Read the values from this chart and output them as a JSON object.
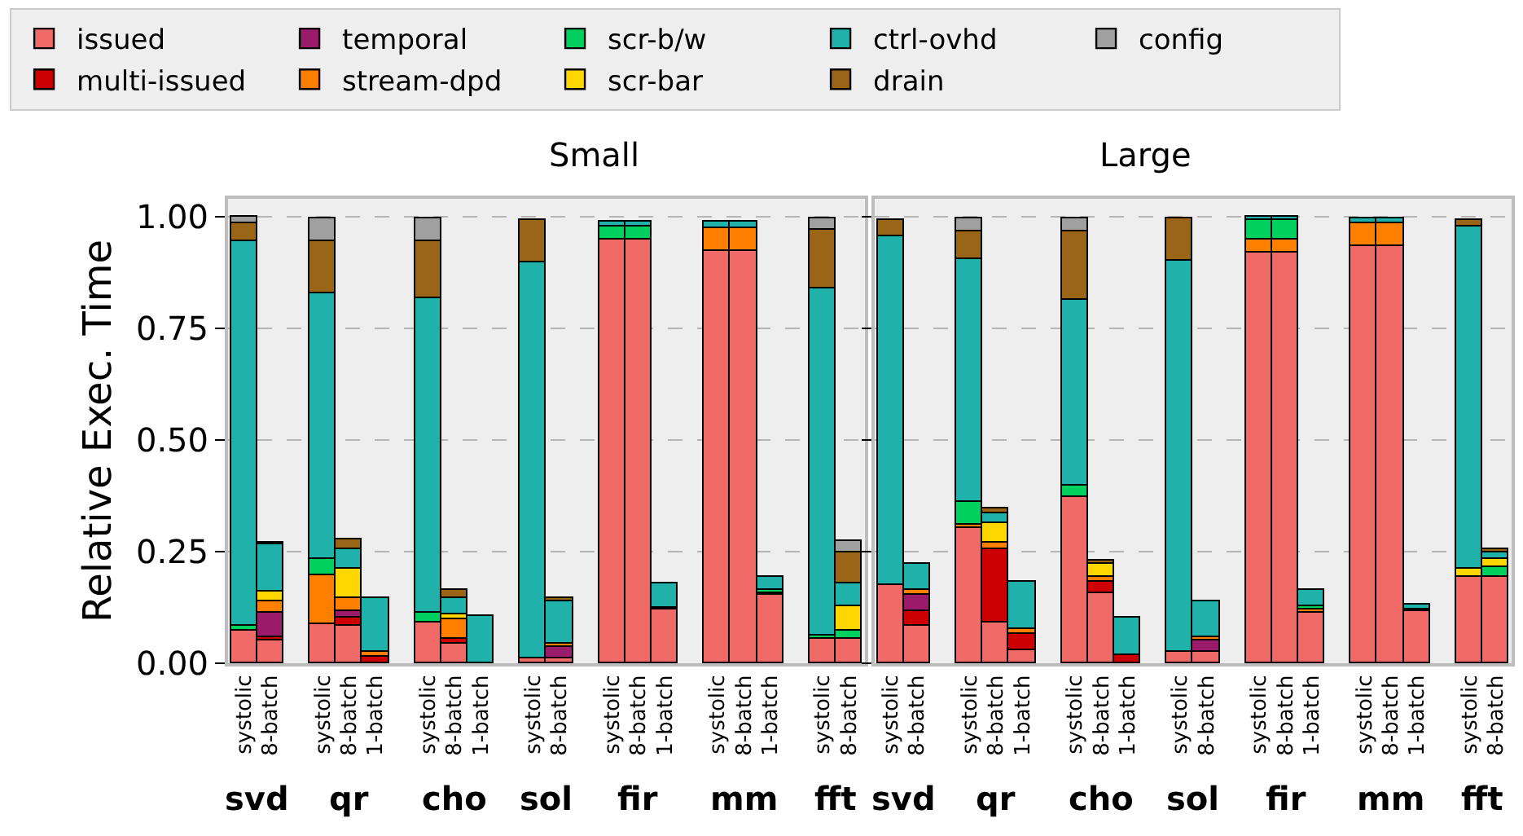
{
  "chart_data": [
    {
      "type": "bar",
      "title": "Small",
      "ylabel": "Relative Exec. Time",
      "stacked": true,
      "grid": "y",
      "legend": "top",
      "categories": [
        "systolic",
        "8-batch",
        null,
        "systolic",
        "8-batch",
        "1-batch",
        null,
        "systolic",
        "8-batch",
        "1-batch",
        null,
        "systolic",
        "8-batch",
        null,
        "systolic",
        "8-batch",
        "1-batch",
        null,
        "systolic",
        "8-batch",
        "1-batch",
        null,
        "systolic",
        "8-batch"
      ],
      "annotations": [
        "svd",
        "qr",
        "cho",
        "sol",
        "fir",
        "mm",
        "fft"
      ],
      "ylim": [
        0,
        1.04
      ],
      "yticks": [
        {
          "value": 0,
          "label": "0.00"
        },
        {
          "value": 0.25,
          "label": "0.25"
        },
        {
          "value": 0.5,
          "label": "0.50"
        },
        {
          "value": 0.75,
          "label": "0.75"
        },
        {
          "value": 1,
          "label": "1.00"
        }
      ],
      "series": [
        {
          "name": "issued",
          "color": "#f06b67",
          "values": [
            0.072,
            0.05,
            null,
            0.089,
            0.084,
            null,
            null,
            0.09,
            0.045,
            null,
            null,
            0.011,
            0.011,
            null,
            0.948,
            0.948,
            0.119,
            null,
            0.923,
            0.923,
            0.153,
            null,
            0.054,
            0.054
          ]
        },
        {
          "name": "multi-issued",
          "color": "#cc0000",
          "values": [
            null,
            0.007,
            null,
            null,
            0.019,
            0.016,
            null,
            null,
            0.011,
            null,
            null,
            null,
            null,
            null,
            null,
            null,
            0.004,
            null,
            null,
            null,
            null,
            null,
            null,
            null
          ]
        },
        {
          "name": "temporal",
          "color": "#9b1b6b",
          "values": [
            null,
            0.056,
            null,
            null,
            0.013,
            null,
            null,
            null,
            null,
            null,
            null,
            null,
            0.024,
            null,
            null,
            null,
            null,
            null,
            null,
            null,
            null,
            null,
            null,
            null
          ]
        },
        {
          "name": "stream-dpd",
          "color": "#ff7f00",
          "values": [
            null,
            0.025,
            null,
            0.109,
            0.031,
            0.01,
            null,
            null,
            0.044,
            null,
            null,
            null,
            0.01,
            null,
            null,
            null,
            null,
            null,
            0.051,
            0.051,
            0.005,
            null,
            null,
            null
          ]
        },
        {
          "name": "scr-b/w",
          "color": "#00d15e",
          "values": [
            0.011,
            null,
            null,
            0.037,
            null,
            null,
            null,
            0.024,
            null,
            null,
            null,
            null,
            null,
            null,
            0.029,
            0.029,
            null,
            null,
            null,
            null,
            0.007,
            null,
            0.007,
            0.018
          ]
        },
        {
          "name": "scr-bar",
          "color": "#ffd700",
          "values": [
            null,
            0.021,
            null,
            null,
            0.065,
            null,
            null,
            null,
            0.011,
            null,
            null,
            null,
            null,
            null,
            null,
            null,
            null,
            null,
            null,
            null,
            null,
            null,
            null,
            0.055
          ]
        },
        {
          "name": "ctrl-ovhd",
          "color": "#20b2aa",
          "values": [
            0.861,
            0.107,
            null,
            0.593,
            0.045,
            0.12,
            null,
            0.705,
            0.035,
            0.107,
            null,
            0.885,
            0.093,
            null,
            0.013,
            0.013,
            0.055,
            null,
            0.015,
            0.015,
            0.028,
            null,
            0.78,
            0.053
          ]
        },
        {
          "name": "drain",
          "color": "#9a6516",
          "values": [
            0.043,
            0.005,
            null,
            0.116,
            0.021,
            null,
            null,
            0.127,
            0.018,
            null,
            null,
            0.095,
            0.009,
            null,
            null,
            null,
            null,
            null,
            null,
            null,
            null,
            null,
            0.129,
            0.067
          ]
        },
        {
          "name": "config",
          "color": "#a0a0a0",
          "values": [
            0.013,
            null,
            null,
            0.051,
            null,
            null,
            null,
            0.049,
            null,
            null,
            null,
            null,
            null,
            null,
            null,
            null,
            null,
            null,
            null,
            null,
            null,
            null,
            0.025,
            0.028
          ]
        }
      ]
    },
    {
      "type": "bar",
      "title": "Large",
      "stacked": true,
      "grid": "y",
      "tick_labels": "x",
      "categories": [
        "systolic",
        "8-batch",
        null,
        "systolic",
        "8-batch",
        "1-batch",
        null,
        "systolic",
        "8-batch",
        "1-batch",
        null,
        "systolic",
        "8-batch",
        null,
        "systolic",
        "8-batch",
        "1-batch",
        null,
        "systolic",
        "8-batch",
        "1-batch",
        null,
        "systolic",
        "8-batch"
      ],
      "annotations": [
        "svd",
        "qr",
        "cho",
        "sol",
        "fir",
        "mm",
        "fft"
      ],
      "ylim": [
        0,
        1.04
      ],
      "yticks": [
        {
          "value": 0,
          "label": null
        },
        {
          "value": 0.25,
          "label": null
        },
        {
          "value": 0.5,
          "label": null
        },
        {
          "value": 0.75,
          "label": null
        },
        {
          "value": 1,
          "label": null
        }
      ],
      "series": [
        {
          "color": "#f06b67",
          "values": [
            0.175,
            0.084,
            null,
            0.302,
            0.092,
            0.028,
            null,
            0.371,
            0.157,
            null,
            null,
            0.026,
            0.024,
            null,
            0.921,
            0.921,
            0.114,
            null,
            0.934,
            0.934,
            0.117,
            null,
            0.193,
            0.193
          ]
        },
        {
          "color": "#cc0000",
          "values": [
            null,
            0.034,
            null,
            null,
            0.162,
            0.039,
            null,
            null,
            0.025,
            0.018,
            null,
            null,
            null,
            null,
            null,
            null,
            null,
            null,
            null,
            null,
            null,
            null,
            null,
            null
          ]
        },
        {
          "color": "#9b1b6b",
          "values": [
            null,
            0.035,
            null,
            null,
            null,
            null,
            null,
            null,
            null,
            null,
            null,
            null,
            0.026,
            null,
            null,
            null,
            null,
            null,
            null,
            null,
            null,
            null,
            null,
            null
          ]
        },
        {
          "color": "#ff7f00",
          "values": [
            null,
            0.01,
            null,
            0.008,
            0.017,
            0.011,
            null,
            null,
            0.011,
            null,
            null,
            null,
            0.009,
            null,
            0.027,
            0.027,
            0.006,
            null,
            0.051,
            0.051,
            0.005,
            null,
            null,
            null
          ]
        },
        {
          "color": "#00d15e",
          "values": [
            null,
            null,
            null,
            0.05,
            null,
            null,
            null,
            0.028,
            null,
            null,
            null,
            null,
            null,
            null,
            0.044,
            0.044,
            0.006,
            null,
            null,
            null,
            null,
            null,
            null,
            0.022
          ]
        },
        {
          "color": "#ffd700",
          "values": [
            null,
            null,
            null,
            null,
            0.044,
            null,
            null,
            null,
            0.029,
            null,
            null,
            null,
            null,
            null,
            null,
            null,
            null,
            null,
            null,
            null,
            null,
            null,
            0.019,
            0.02
          ]
        },
        {
          "color": "#20b2aa",
          "values": [
            0.782,
            0.061,
            null,
            0.544,
            0.021,
            0.103,
            null,
            0.414,
            null,
            0.086,
            null,
            0.875,
            0.081,
            null,
            0.007,
            0.007,
            0.038,
            null,
            0.01,
            0.01,
            0.009,
            null,
            0.765,
            0.012
          ]
        },
        {
          "color": "#9a6516",
          "values": [
            0.036,
            null,
            null,
            0.063,
            0.01,
            null,
            null,
            0.154,
            0.007,
            null,
            null,
            0.094,
            null,
            null,
            null,
            null,
            null,
            null,
            null,
            null,
            null,
            null,
            0.016,
            0.008
          ]
        },
        {
          "color": "#a0a0a0",
          "values": [
            null,
            null,
            null,
            0.028,
            null,
            null,
            null,
            0.028,
            null,
            null,
            null,
            null,
            null,
            null,
            null,
            null,
            null,
            null,
            null,
            null,
            null,
            null,
            null,
            null
          ]
        }
      ]
    }
  ]
}
